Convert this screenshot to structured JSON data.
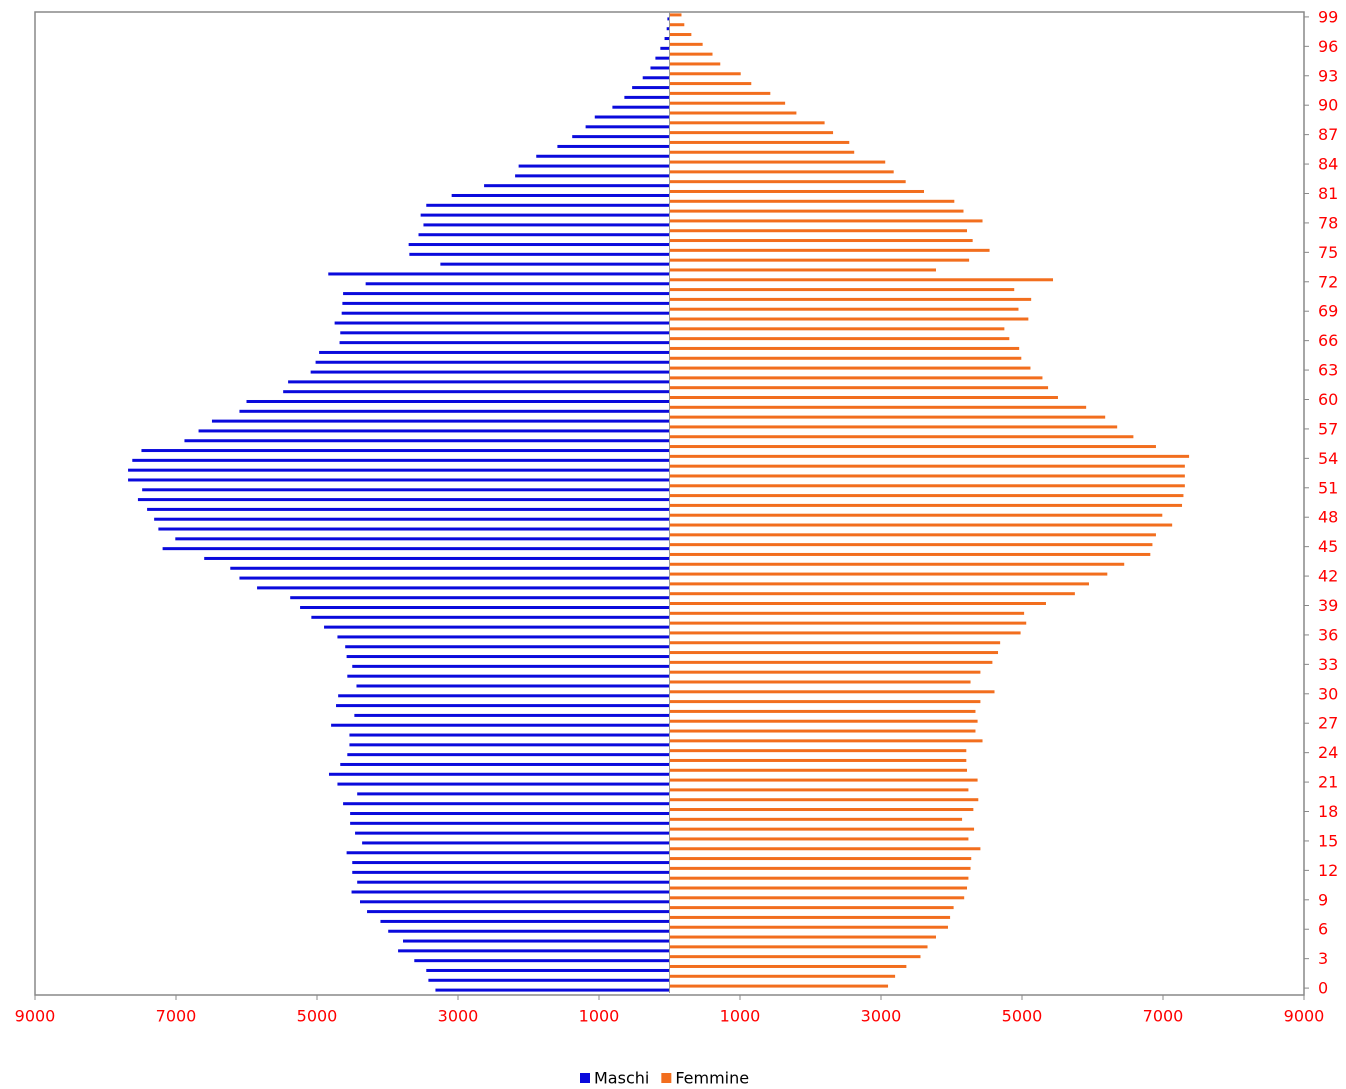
{
  "chart_data": {
    "type": "pyramid",
    "categories": [
      0,
      1,
      2,
      3,
      4,
      5,
      6,
      7,
      8,
      9,
      10,
      11,
      12,
      13,
      14,
      15,
      16,
      17,
      18,
      19,
      20,
      21,
      22,
      23,
      24,
      25,
      26,
      27,
      28,
      29,
      30,
      31,
      32,
      33,
      34,
      35,
      36,
      37,
      38,
      39,
      40,
      41,
      42,
      43,
      44,
      45,
      46,
      47,
      48,
      49,
      50,
      51,
      52,
      53,
      54,
      55,
      56,
      57,
      58,
      59,
      60,
      61,
      62,
      63,
      64,
      65,
      66,
      67,
      68,
      69,
      70,
      71,
      72,
      73,
      74,
      75,
      76,
      77,
      78,
      79,
      80,
      81,
      82,
      83,
      84,
      85,
      86,
      87,
      88,
      89,
      90,
      91,
      92,
      93,
      94,
      95,
      96,
      97,
      98,
      99
    ],
    "series": [
      {
        "name": "Maschi",
        "color": "#0a0adc",
        "side": "left",
        "values": [
          3320,
          3420,
          3450,
          3620,
          3850,
          3780,
          3990,
          4100,
          4290,
          4390,
          4510,
          4430,
          4500,
          4500,
          4580,
          4360,
          4460,
          4530,
          4530,
          4630,
          4430,
          4710,
          4830,
          4670,
          4570,
          4540,
          4540,
          4800,
          4470,
          4730,
          4700,
          4440,
          4570,
          4500,
          4580,
          4600,
          4710,
          4900,
          5080,
          5240,
          5380,
          5850,
          6100,
          6230,
          6600,
          7190,
          7010,
          7250,
          7310,
          7410,
          7540,
          7480,
          7680,
          7680,
          7620,
          7490,
          6880,
          6680,
          6490,
          6100,
          6000,
          5480,
          5410,
          5090,
          5020,
          4970,
          4680,
          4670,
          4750,
          4650,
          4640,
          4630,
          4310,
          4840,
          3250,
          3690,
          3700,
          3560,
          3490,
          3530,
          3450,
          3090,
          2630,
          2190,
          2140,
          1890,
          1590,
          1380,
          1190,
          1060,
          810,
          640,
          530,
          380,
          270,
          200,
          130,
          70,
          40,
          30
        ]
      },
      {
        "name": "Femmine",
        "color": "#f26e1e",
        "side": "right",
        "values": [
          3100,
          3200,
          3360,
          3560,
          3660,
          3780,
          3950,
          3980,
          4030,
          4180,
          4220,
          4240,
          4270,
          4280,
          4410,
          4240,
          4320,
          4150,
          4310,
          4380,
          4240,
          4370,
          4220,
          4210,
          4210,
          4440,
          4340,
          4370,
          4340,
          4410,
          4610,
          4270,
          4410,
          4580,
          4660,
          4690,
          4980,
          5060,
          5030,
          5340,
          5750,
          5950,
          6210,
          6450,
          6820,
          6850,
          6900,
          7130,
          6990,
          7270,
          7290,
          7310,
          7310,
          7310,
          7370,
          6900,
          6580,
          6350,
          6180,
          5910,
          5510,
          5370,
          5290,
          5120,
          4990,
          4960,
          4820,
          4750,
          5090,
          4950,
          5130,
          4890,
          5440,
          3780,
          4250,
          4540,
          4300,
          4220,
          4440,
          4170,
          4040,
          3610,
          3350,
          3180,
          3060,
          2620,
          2550,
          2320,
          2200,
          1800,
          1640,
          1430,
          1160,
          1010,
          720,
          610,
          470,
          310,
          210,
          170
        ]
      }
    ],
    "xlim": [
      -9000,
      9000
    ],
    "xticks": [
      {
        "value": -9000,
        "label": "9000"
      },
      {
        "value": -7000,
        "label": "7000"
      },
      {
        "value": -5000,
        "label": "5000"
      },
      {
        "value": -3000,
        "label": "3000"
      },
      {
        "value": -1000,
        "label": "1000"
      },
      1000,
      3000,
      5000,
      7000,
      9000
    ],
    "yticks": [
      0,
      3,
      6,
      9,
      12,
      15,
      18,
      21,
      24,
      27,
      30,
      33,
      36,
      39,
      42,
      45,
      48,
      51,
      54,
      57,
      60,
      63,
      66,
      69,
      72,
      75,
      78,
      81,
      84,
      87,
      90,
      93,
      96,
      99
    ],
    "legend": "bottom"
  }
}
